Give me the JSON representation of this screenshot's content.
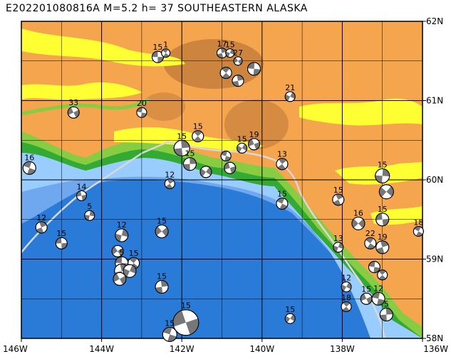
{
  "title": "E202201080816A M=5.2 h= 37 SOUTHEASTERN ALASKA",
  "map": {
    "lon_min": -146,
    "lon_max": -136,
    "lat_min": 58,
    "lat_max": 62,
    "x_ticks": [
      {
        "lon": -146,
        "label": "146W"
      },
      {
        "lon": -144,
        "label": "144W"
      },
      {
        "lon": -142,
        "label": "142W"
      },
      {
        "lon": -140,
        "label": "140W"
      },
      {
        "lon": -138,
        "label": "138W"
      },
      {
        "lon": -136,
        "label": "136W"
      }
    ],
    "y_ticks": [
      {
        "lat": 62,
        "label": "62N"
      },
      {
        "lat": 61,
        "label": "61N"
      },
      {
        "lat": 60,
        "label": "60N"
      },
      {
        "lat": 59,
        "label": "59N"
      },
      {
        "lat": 58,
        "label": "58N"
      }
    ],
    "colors": {
      "land_low": "#f4a54e",
      "land_high": "#c07a3a",
      "ice": "#ffff33",
      "green": "#88cc44",
      "dark_green": "#33aa33",
      "shelf": "#99ccff",
      "slope": "#6fa8ee",
      "deep": "#2a7ad8",
      "boundary": "#d8d8d8"
    }
  },
  "events": [
    {
      "lon": -142.6,
      "lat": 61.55,
      "label": "15",
      "r": 8
    },
    {
      "lon": -142.4,
      "lat": 61.6,
      "label": "1",
      "r": 6
    },
    {
      "lon": -141.0,
      "lat": 61.6,
      "label": "17",
      "r": 7
    },
    {
      "lon": -140.8,
      "lat": 61.6,
      "label": "15",
      "r": 6
    },
    {
      "lon": -140.6,
      "lat": 61.5,
      "label": "27",
      "r": 6
    },
    {
      "lon": -140.2,
      "lat": 61.4,
      "label": "",
      "r": 9
    },
    {
      "lon": -140.9,
      "lat": 61.35,
      "label": "",
      "r": 8
    },
    {
      "lon": -140.6,
      "lat": 61.25,
      "label": "",
      "r": 8
    },
    {
      "lon": -139.3,
      "lat": 61.05,
      "label": "21",
      "r": 7
    },
    {
      "lon": -144.7,
      "lat": 60.85,
      "label": "33",
      "r": 8
    },
    {
      "lon": -143.0,
      "lat": 60.85,
      "label": "20",
      "r": 7
    },
    {
      "lon": -141.6,
      "lat": 60.55,
      "label": "15",
      "r": 8
    },
    {
      "lon": -142.0,
      "lat": 60.4,
      "label": "15",
      "r": 11
    },
    {
      "lon": -140.5,
      "lat": 60.4,
      "label": "15",
      "r": 7
    },
    {
      "lon": -140.2,
      "lat": 60.45,
      "label": "19",
      "r": 8
    },
    {
      "lon": -140.9,
      "lat": 60.3,
      "label": "",
      "r": 7
    },
    {
      "lon": -139.5,
      "lat": 60.2,
      "label": "13",
      "r": 8
    },
    {
      "lon": -141.8,
      "lat": 60.2,
      "label": "15",
      "r": 9
    },
    {
      "lon": -141.4,
      "lat": 60.1,
      "label": "",
      "r": 8
    },
    {
      "lon": -140.8,
      "lat": 60.15,
      "label": "",
      "r": 8
    },
    {
      "lon": -145.8,
      "lat": 60.15,
      "label": "16",
      "r": 9
    },
    {
      "lon": -142.3,
      "lat": 59.95,
      "label": "12",
      "r": 7
    },
    {
      "lon": -137.0,
      "lat": 60.05,
      "label": "15",
      "r": 10
    },
    {
      "lon": -136.9,
      "lat": 59.85,
      "label": "",
      "r": 10
    },
    {
      "lon": -144.5,
      "lat": 59.8,
      "label": "14",
      "r": 7
    },
    {
      "lon": -139.5,
      "lat": 59.7,
      "label": "15",
      "r": 8
    },
    {
      "lon": -138.1,
      "lat": 59.75,
      "label": "15",
      "r": 8
    },
    {
      "lon": -144.3,
      "lat": 59.55,
      "label": "5",
      "r": 7
    },
    {
      "lon": -137.6,
      "lat": 59.45,
      "label": "16",
      "r": 9
    },
    {
      "lon": -137.0,
      "lat": 59.5,
      "label": "15",
      "r": 9
    },
    {
      "lon": -136.1,
      "lat": 59.35,
      "label": "18",
      "r": 7
    },
    {
      "lon": -145.5,
      "lat": 59.4,
      "label": "12",
      "r": 8
    },
    {
      "lon": -143.5,
      "lat": 59.3,
      "label": "12",
      "r": 9
    },
    {
      "lon": -142.5,
      "lat": 59.35,
      "label": "15",
      "r": 9
    },
    {
      "lon": -145.0,
      "lat": 59.2,
      "label": "15",
      "r": 8
    },
    {
      "lon": -137.3,
      "lat": 59.2,
      "label": "22",
      "r": 8
    },
    {
      "lon": -137.0,
      "lat": 59.15,
      "label": "19",
      "r": 9
    },
    {
      "lon": -138.1,
      "lat": 59.15,
      "label": "13",
      "r": 7
    },
    {
      "lon": -143.6,
      "lat": 59.1,
      "label": "",
      "r": 8
    },
    {
      "lon": -143.5,
      "lat": 58.95,
      "label": "5",
      "r": 9
    },
    {
      "lon": -143.2,
      "lat": 58.95,
      "label": "15",
      "r": 8
    },
    {
      "lon": -143.5,
      "lat": 58.85,
      "label": "",
      "r": 10
    },
    {
      "lon": -143.3,
      "lat": 58.85,
      "label": "",
      "r": 9
    },
    {
      "lon": -143.55,
      "lat": 58.75,
      "label": "",
      "r": 9
    },
    {
      "lon": -137.2,
      "lat": 58.9,
      "label": "",
      "r": 8
    },
    {
      "lon": -137.0,
      "lat": 58.8,
      "label": "",
      "r": 7
    },
    {
      "lon": -142.5,
      "lat": 58.65,
      "label": "15",
      "r": 9
    },
    {
      "lon": -137.9,
      "lat": 58.65,
      "label": "12",
      "r": 7
    },
    {
      "lon": -137.4,
      "lat": 58.5,
      "label": "15",
      "r": 8
    },
    {
      "lon": -137.1,
      "lat": 58.5,
      "label": "12",
      "r": 9
    },
    {
      "lon": -137.9,
      "lat": 58.4,
      "label": "18",
      "r": 7
    },
    {
      "lon": -136.9,
      "lat": 58.3,
      "label": "5",
      "r": 9
    },
    {
      "lon": -139.3,
      "lat": 58.25,
      "label": "15",
      "r": 7
    },
    {
      "lon": -141.9,
      "lat": 58.2,
      "label": "15",
      "r": 18
    },
    {
      "lon": -142.3,
      "lat": 58.05,
      "label": "15",
      "r": 10
    }
  ]
}
